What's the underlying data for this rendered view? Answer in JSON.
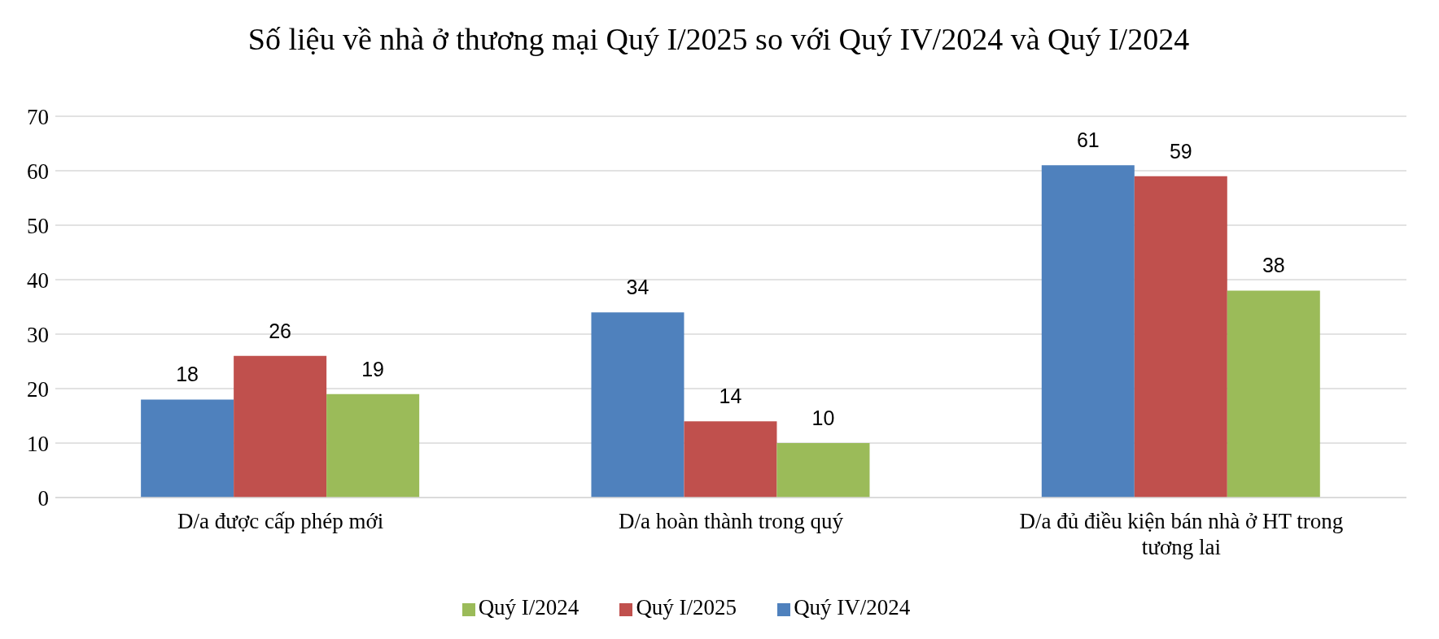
{
  "chart_data": {
    "type": "bar",
    "title": "Số liệu về nhà ở thương mại Quý I/2025 so với Quý IV/2024 và Quý I/2024",
    "categories": [
      "D/a được cấp phép mới",
      "D/a hoàn thành trong quý",
      "D/a đủ điều kiện bán nhà ở HT trong tương lai"
    ],
    "series": [
      {
        "name": "Quý IV/2024",
        "color": "#4f81bd",
        "values": [
          18,
          34,
          61
        ]
      },
      {
        "name": "Quý I/2025",
        "color": "#c0504d",
        "values": [
          26,
          14,
          59
        ]
      },
      {
        "name": "Quý I/2024",
        "color": "#9bbb59",
        "values": [
          19,
          10,
          38
        ]
      }
    ],
    "ylim": [
      0,
      70
    ],
    "yticks": [
      0,
      10,
      20,
      30,
      40,
      50,
      60,
      70
    ],
    "grid": "y",
    "legend": "bottom",
    "data_labels": true
  }
}
